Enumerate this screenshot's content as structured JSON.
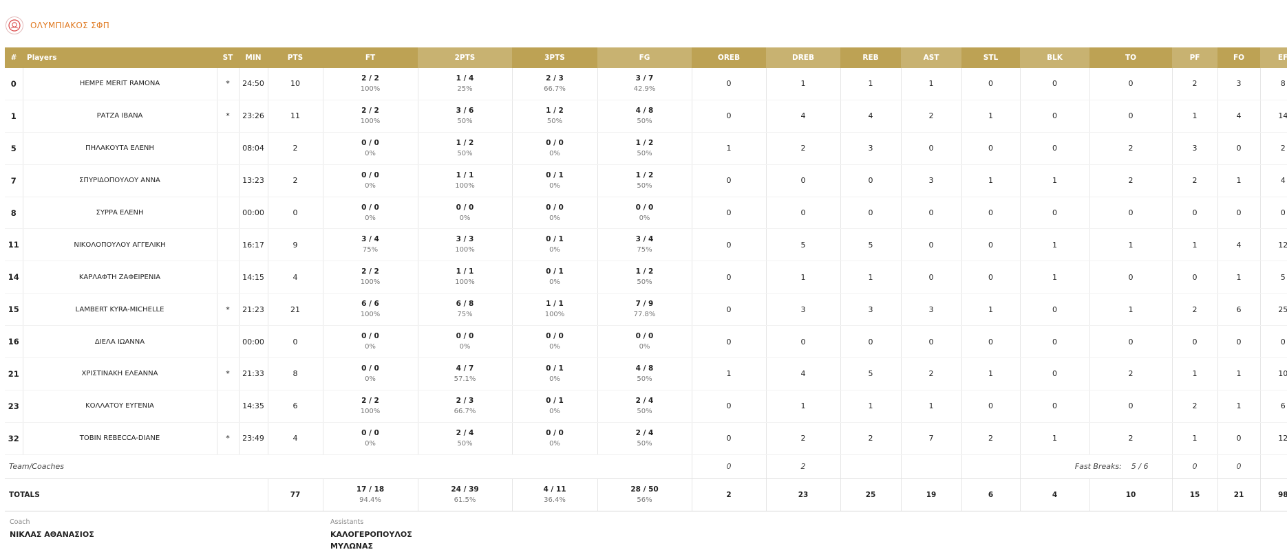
{
  "team": {
    "name": "ΟΛΥΜΠΙΑΚΟΣ ΣΦΠ",
    "logo_icon": "team-crest-icon"
  },
  "headers": [
    "#",
    "Players",
    "ST",
    "MIN",
    "PTS",
    "FT",
    "2PTS",
    "3PTS",
    "FG",
    "OREB",
    "DREB",
    "REB",
    "AST",
    "STL",
    "BLK",
    "TO",
    "PF",
    "FO",
    "EF"
  ],
  "players": [
    {
      "num": "0",
      "name": "HEMPE MERIT RAMONA",
      "st": "*",
      "min": "24:50",
      "pts": "10",
      "ft": "2 / 2",
      "ft_pct": "100%",
      "p2": "1 / 4",
      "p2_pct": "25%",
      "p3": "2 / 3",
      "p3_pct": "66.7%",
      "fg": "3 / 7",
      "fg_pct": "42.9%",
      "oreb": "0",
      "dreb": "1",
      "reb": "1",
      "ast": "1",
      "stl": "0",
      "blk": "0",
      "to": "0",
      "pf": "2",
      "fo": "3",
      "ef": "8"
    },
    {
      "num": "1",
      "name": "ΡΑΤΖΑ ΙΒΑΝΑ",
      "st": "*",
      "min": "23:26",
      "pts": "11",
      "ft": "2 / 2",
      "ft_pct": "100%",
      "p2": "3 / 6",
      "p2_pct": "50%",
      "p3": "1 / 2",
      "p3_pct": "50%",
      "fg": "4 / 8",
      "fg_pct": "50%",
      "oreb": "0",
      "dreb": "4",
      "reb": "4",
      "ast": "2",
      "stl": "1",
      "blk": "0",
      "to": "0",
      "pf": "1",
      "fo": "4",
      "ef": "14"
    },
    {
      "num": "5",
      "name": "ΠΗΛΑΚΟΥΤΑ ΕΛΕΝΗ",
      "st": "",
      "min": "08:04",
      "pts": "2",
      "ft": "0 / 0",
      "ft_pct": "0%",
      "p2": "1 / 2",
      "p2_pct": "50%",
      "p3": "0 / 0",
      "p3_pct": "0%",
      "fg": "1 / 2",
      "fg_pct": "50%",
      "oreb": "1",
      "dreb": "2",
      "reb": "3",
      "ast": "0",
      "stl": "0",
      "blk": "0",
      "to": "2",
      "pf": "3",
      "fo": "0",
      "ef": "2"
    },
    {
      "num": "7",
      "name": "ΣΠΥΡΙΔΟΠΟΥΛΟΥ ΑΝΝΑ",
      "st": "",
      "min": "13:23",
      "pts": "2",
      "ft": "0 / 0",
      "ft_pct": "0%",
      "p2": "1 / 1",
      "p2_pct": "100%",
      "p3": "0 / 1",
      "p3_pct": "0%",
      "fg": "1 / 2",
      "fg_pct": "50%",
      "oreb": "0",
      "dreb": "0",
      "reb": "0",
      "ast": "3",
      "stl": "1",
      "blk": "1",
      "to": "2",
      "pf": "2",
      "fo": "1",
      "ef": "4"
    },
    {
      "num": "8",
      "name": "ΣΥΡΡΑ ΕΛΕΝΗ",
      "st": "",
      "min": "00:00",
      "pts": "0",
      "ft": "0 / 0",
      "ft_pct": "0%",
      "p2": "0 / 0",
      "p2_pct": "0%",
      "p3": "0 / 0",
      "p3_pct": "0%",
      "fg": "0 / 0",
      "fg_pct": "0%",
      "oreb": "0",
      "dreb": "0",
      "reb": "0",
      "ast": "0",
      "stl": "0",
      "blk": "0",
      "to": "0",
      "pf": "0",
      "fo": "0",
      "ef": "0"
    },
    {
      "num": "11",
      "name": "ΝΙΚΟΛΟΠΟΥΛΟΥ ΑΓΓΕΛΙΚΗ",
      "st": "",
      "min": "16:17",
      "pts": "9",
      "ft": "3 / 4",
      "ft_pct": "75%",
      "p2": "3 / 3",
      "p2_pct": "100%",
      "p3": "0 / 1",
      "p3_pct": "0%",
      "fg": "3 / 4",
      "fg_pct": "75%",
      "oreb": "0",
      "dreb": "5",
      "reb": "5",
      "ast": "0",
      "stl": "0",
      "blk": "1",
      "to": "1",
      "pf": "1",
      "fo": "4",
      "ef": "12"
    },
    {
      "num": "14",
      "name": "ΚΑΡΛΑΦΤΗ ΖΑΦΕΙΡΕΝΙΑ",
      "st": "",
      "min": "14:15",
      "pts": "4",
      "ft": "2 / 2",
      "ft_pct": "100%",
      "p2": "1 / 1",
      "p2_pct": "100%",
      "p3": "0 / 1",
      "p3_pct": "0%",
      "fg": "1 / 2",
      "fg_pct": "50%",
      "oreb": "0",
      "dreb": "1",
      "reb": "1",
      "ast": "0",
      "stl": "0",
      "blk": "1",
      "to": "0",
      "pf": "0",
      "fo": "1",
      "ef": "5"
    },
    {
      "num": "15",
      "name": "LAMBERT KYRA-MICHELLE",
      "st": "*",
      "min": "21:23",
      "pts": "21",
      "ft": "6 / 6",
      "ft_pct": "100%",
      "p2": "6 / 8",
      "p2_pct": "75%",
      "p3": "1 / 1",
      "p3_pct": "100%",
      "fg": "7 / 9",
      "fg_pct": "77.8%",
      "oreb": "0",
      "dreb": "3",
      "reb": "3",
      "ast": "3",
      "stl": "1",
      "blk": "0",
      "to": "1",
      "pf": "2",
      "fo": "6",
      "ef": "25"
    },
    {
      "num": "16",
      "name": "ΔΙΕΛΑ ΙΩΑΝΝΑ",
      "st": "",
      "min": "00:00",
      "pts": "0",
      "ft": "0 / 0",
      "ft_pct": "0%",
      "p2": "0 / 0",
      "p2_pct": "0%",
      "p3": "0 / 0",
      "p3_pct": "0%",
      "fg": "0 / 0",
      "fg_pct": "0%",
      "oreb": "0",
      "dreb": "0",
      "reb": "0",
      "ast": "0",
      "stl": "0",
      "blk": "0",
      "to": "0",
      "pf": "0",
      "fo": "0",
      "ef": "0"
    },
    {
      "num": "21",
      "name": "ΧΡΙΣΤΙΝΑΚΗ ΕΛΕΑΝΝΑ",
      "st": "*",
      "min": "21:33",
      "pts": "8",
      "ft": "0 / 0",
      "ft_pct": "0%",
      "p2": "4 / 7",
      "p2_pct": "57.1%",
      "p3": "0 / 1",
      "p3_pct": "0%",
      "fg": "4 / 8",
      "fg_pct": "50%",
      "oreb": "1",
      "dreb": "4",
      "reb": "5",
      "ast": "2",
      "stl": "1",
      "blk": "0",
      "to": "2",
      "pf": "1",
      "fo": "1",
      "ef": "10"
    },
    {
      "num": "23",
      "name": "ΚΟΛΛΑΤΟΥ ΕΥΓΕΝΙΑ",
      "st": "",
      "min": "14:35",
      "pts": "6",
      "ft": "2 / 2",
      "ft_pct": "100%",
      "p2": "2 / 3",
      "p2_pct": "66.7%",
      "p3": "0 / 1",
      "p3_pct": "0%",
      "fg": "2 / 4",
      "fg_pct": "50%",
      "oreb": "0",
      "dreb": "1",
      "reb": "1",
      "ast": "1",
      "stl": "0",
      "blk": "0",
      "to": "0",
      "pf": "2",
      "fo": "1",
      "ef": "6"
    },
    {
      "num": "32",
      "name": "TOBIN REBECCA-DIANE",
      "st": "*",
      "min": "23:49",
      "pts": "4",
      "ft": "0 / 0",
      "ft_pct": "0%",
      "p2": "2 / 4",
      "p2_pct": "50%",
      "p3": "0 / 0",
      "p3_pct": "0%",
      "fg": "2 / 4",
      "fg_pct": "50%",
      "oreb": "0",
      "dreb": "2",
      "reb": "2",
      "ast": "7",
      "stl": "2",
      "blk": "1",
      "to": "2",
      "pf": "1",
      "fo": "0",
      "ef": "12"
    }
  ],
  "team_row": {
    "label": "Team/Coaches",
    "oreb": "0",
    "dreb": "2",
    "fast_breaks_label": "Fast Breaks:",
    "fast_breaks_value": "5 / 6",
    "to": "0",
    "pf": "0"
  },
  "totals": {
    "label": "TOTALS",
    "pts": "77",
    "ft": "17 / 18",
    "ft_pct": "94.4%",
    "p2": "24 / 39",
    "p2_pct": "61.5%",
    "p3": "4 / 11",
    "p3_pct": "36.4%",
    "fg": "28 / 50",
    "fg_pct": "56%",
    "oreb": "2",
    "dreb": "23",
    "reb": "25",
    "ast": "19",
    "stl": "6",
    "blk": "4",
    "to": "10",
    "pf": "15",
    "fo": "21",
    "ef": "98"
  },
  "coaches": {
    "coach_label": "Coach",
    "coach_name": "ΝΙΚΛΑΣ ΑΘΑΝΑΣΙΟΣ",
    "assistants_label": "Assistants",
    "assistants": [
      "ΚΑΛΟΓΕΡΟΠΟΥΛΟΣ",
      "ΜΥΛΩΝΑΣ"
    ]
  },
  "colors": {
    "header_bg": "#bda254",
    "header_alt_bg": "#c8b271",
    "team_name": "#e07a22"
  }
}
